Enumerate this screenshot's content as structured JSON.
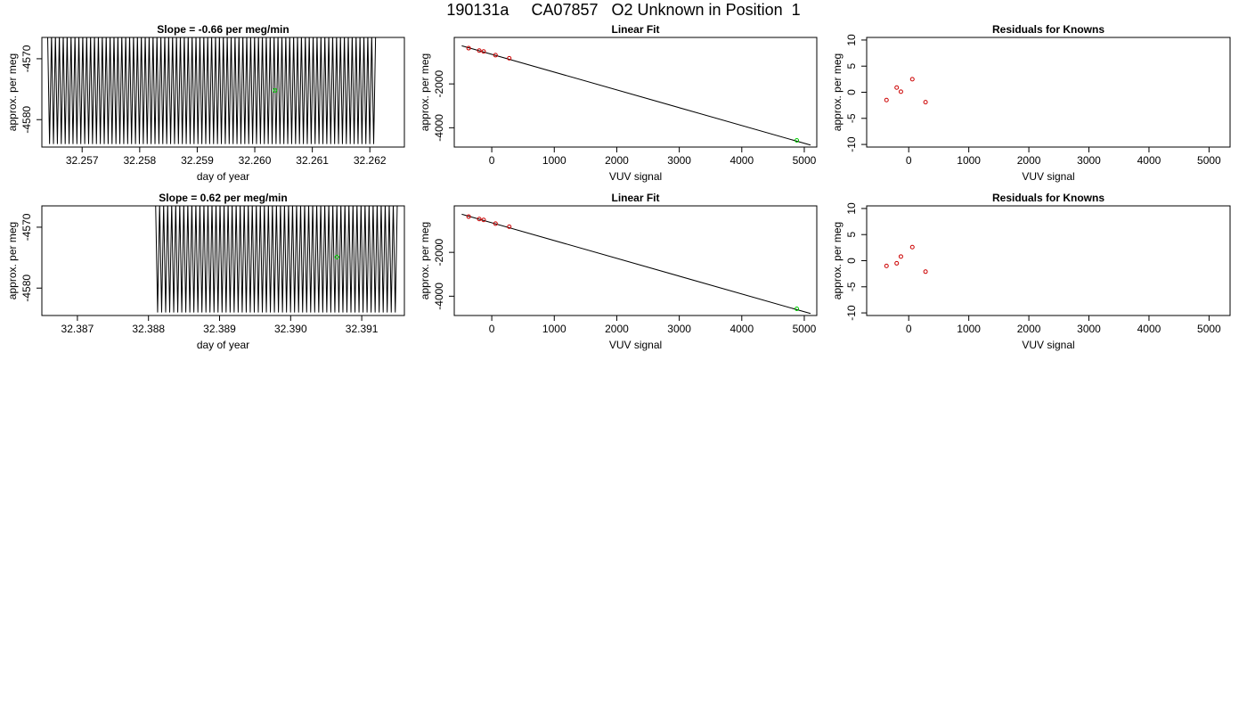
{
  "figure_title": "190131a     CA07857   O2 Unknown in Position  1",
  "colors": {
    "trace": "#000000",
    "unknown_point": "#00cc00",
    "known_point": "#cc0000"
  },
  "chart_data": [
    {
      "type": "line",
      "title": "Slope =  -0.66  per meg/min",
      "xlabel": "day of year",
      "ylabel": "approx. per meg",
      "xlim": [
        32.2563,
        32.2626
      ],
      "ylim": [
        -4584.5,
        -4566.5
      ],
      "xticks": [
        "32.257",
        "32.258",
        "32.259",
        "32.260",
        "32.261",
        "32.262"
      ],
      "yticks": [
        "-4570",
        "-4580"
      ],
      "series": [
        {
          "x_start": 32.2564,
          "x_end": 32.2621,
          "cycles": 84,
          "high": -4566.0,
          "low": -4584.0
        }
      ],
      "highlight": {
        "x": 32.26035,
        "y": -4575.2,
        "label": "unknown"
      }
    },
    {
      "type": "scatter",
      "title": "Linear Fit",
      "xlabel": "VUV signal",
      "ylabel": "approx. per meg",
      "xlim": [
        -600,
        5200
      ],
      "ylim": [
        -4880,
        120
      ],
      "xticks": [
        "0",
        "1000",
        "2000",
        "3000",
        "4000",
        "5000"
      ],
      "yticks": [
        "-2000",
        "-4000"
      ],
      "knowns": {
        "x": [
          -370,
          -200,
          -130,
          60,
          280
        ],
        "y": [
          -370,
          -480,
          -520,
          -690,
          -830
        ]
      },
      "unknown": {
        "x": 4880,
        "y": -4575
      },
      "fit_line": {
        "x": [
          -480,
          5100
        ],
        "y": [
          -260,
          -4790
        ]
      }
    },
    {
      "type": "scatter",
      "title": "Residuals for Knowns",
      "xlabel": "VUV signal",
      "ylabel": "approx. per meg",
      "xlim": [
        -700,
        5350
      ],
      "ylim": [
        -10.5,
        10.5
      ],
      "xticks": [
        "0",
        "1000",
        "2000",
        "3000",
        "4000",
        "5000"
      ],
      "yticks": [
        "-10",
        "-5",
        "0",
        "5",
        "10"
      ],
      "knowns": {
        "x": [
          -370,
          -200,
          -130,
          60,
          280
        ],
        "y": [
          -1.5,
          0.9,
          0.1,
          2.5,
          -1.9
        ]
      }
    },
    {
      "type": "line",
      "title": "Slope =  0.62  per meg/min",
      "xlabel": "day of year",
      "ylabel": "approx. per meg",
      "xlim": [
        32.3865,
        32.3916
      ],
      "ylim": [
        -4584.5,
        -4566.5
      ],
      "xticks": [
        "32.387",
        "32.388",
        "32.389",
        "32.390",
        "32.391"
      ],
      "yticks": [
        "-4570",
        "-4580"
      ],
      "series": [
        {
          "x_start": 32.3881,
          "x_end": 32.3915,
          "cycles": 60,
          "high": -4566.0,
          "low": -4584.0
        }
      ],
      "highlight": {
        "x": 32.39065,
        "y": -4574.9,
        "label": "unknown"
      }
    },
    {
      "type": "scatter",
      "title": "Linear Fit",
      "xlabel": "VUV signal",
      "ylabel": "approx. per meg",
      "xlim": [
        -600,
        5200
      ],
      "ylim": [
        -4880,
        120
      ],
      "xticks": [
        "0",
        "1000",
        "2000",
        "3000",
        "4000",
        "5000"
      ],
      "yticks": [
        "-2000",
        "-4000"
      ],
      "knowns": {
        "x": [
          -370,
          -200,
          -130,
          60,
          280
        ],
        "y": [
          -370,
          -480,
          -520,
          -690,
          -830
        ]
      },
      "unknown": {
        "x": 4880,
        "y": -4575
      },
      "fit_line": {
        "x": [
          -480,
          5100
        ],
        "y": [
          -260,
          -4790
        ]
      }
    },
    {
      "type": "scatter",
      "title": "Residuals for Knowns",
      "xlabel": "VUV signal",
      "ylabel": "approx. per meg",
      "xlim": [
        -700,
        5350
      ],
      "ylim": [
        -10.5,
        10.5
      ],
      "xticks": [
        "0",
        "1000",
        "2000",
        "3000",
        "4000",
        "5000"
      ],
      "yticks": [
        "-10",
        "-5",
        "0",
        "5",
        "10"
      ],
      "knowns": {
        "x": [
          -370,
          -200,
          -130,
          60,
          280
        ],
        "y": [
          -1.0,
          -0.5,
          0.8,
          2.6,
          -2.1
        ]
      }
    }
  ]
}
